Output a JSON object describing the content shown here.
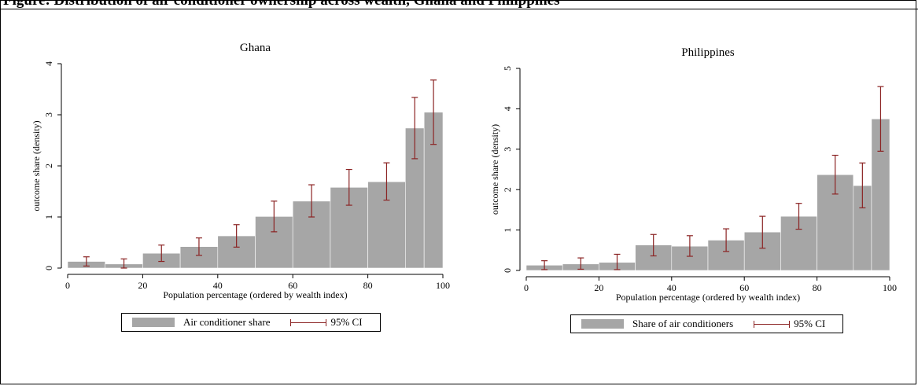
{
  "caption": "Figure: Distribution of air conditioner ownership across wealth, Ghana and Philippines",
  "chart_data": [
    {
      "type": "bar",
      "title": "Ghana",
      "xlabel": "Population percentage (ordered by wealth index)",
      "ylabel": "outcome share (density)",
      "xlim": [
        0,
        100
      ],
      "ylim": [
        0,
        4
      ],
      "xticks": [
        0,
        20,
        40,
        60,
        80,
        100
      ],
      "yticks": [
        0,
        1,
        2,
        3,
        4
      ],
      "bins": [
        [
          0,
          10
        ],
        [
          10,
          20
        ],
        [
          20,
          30
        ],
        [
          30,
          40
        ],
        [
          40,
          50
        ],
        [
          50,
          60
        ],
        [
          60,
          70
        ],
        [
          70,
          80
        ],
        [
          80,
          90
        ],
        [
          90,
          95
        ],
        [
          95,
          100
        ]
      ],
      "values": [
        0.13,
        0.08,
        0.29,
        0.42,
        0.63,
        1.01,
        1.31,
        1.58,
        1.69,
        2.74,
        3.05
      ],
      "ci_x": [
        5,
        15,
        25,
        35,
        45,
        55,
        65,
        75,
        85,
        92.5,
        97.5
      ],
      "ci_low": [
        0.04,
        0.0,
        0.13,
        0.25,
        0.41,
        0.71,
        1.0,
        1.23,
        1.33,
        2.14,
        2.42
      ],
      "ci_high": [
        0.22,
        0.18,
        0.45,
        0.59,
        0.85,
        1.31,
        1.63,
        1.93,
        2.06,
        3.34,
        3.68
      ],
      "legend": {
        "bar_label": "Air conditioner share",
        "ci_label": "95% CI",
        "position": "bottom"
      },
      "grid": false
    },
    {
      "type": "bar",
      "title": "Philippines",
      "xlabel": "Population percentage (ordered by wealth index)",
      "ylabel": "outcome share (density)",
      "xlim": [
        0,
        100
      ],
      "ylim": [
        0,
        5
      ],
      "xticks": [
        0,
        20,
        40,
        60,
        80,
        100
      ],
      "yticks": [
        0,
        1,
        2,
        3,
        4,
        5
      ],
      "bins": [
        [
          0,
          10
        ],
        [
          10,
          20
        ],
        [
          20,
          30
        ],
        [
          30,
          40
        ],
        [
          40,
          50
        ],
        [
          50,
          60
        ],
        [
          60,
          70
        ],
        [
          70,
          80
        ],
        [
          80,
          90
        ],
        [
          90,
          95
        ],
        [
          95,
          100
        ]
      ],
      "values": [
        0.13,
        0.16,
        0.2,
        0.63,
        0.6,
        0.75,
        0.95,
        1.34,
        2.37,
        2.1,
        3.75
      ],
      "ci_x": [
        5,
        15,
        25,
        35,
        45,
        55,
        65,
        75,
        85,
        92.5,
        97.5
      ],
      "ci_low": [
        0.02,
        0.03,
        0.02,
        0.36,
        0.35,
        0.47,
        0.55,
        1.02,
        1.89,
        1.55,
        2.95
      ],
      "ci_high": [
        0.24,
        0.31,
        0.4,
        0.89,
        0.86,
        1.03,
        1.34,
        1.66,
        2.85,
        2.66,
        4.55
      ],
      "legend": {
        "bar_label": "Share of air conditioners",
        "ci_label": "95% CI",
        "position": "bottom"
      },
      "grid": false
    }
  ],
  "colors": {
    "bar_fill": "#a6a6a6",
    "ci_line": "#8b2323",
    "axis": "#000000"
  }
}
